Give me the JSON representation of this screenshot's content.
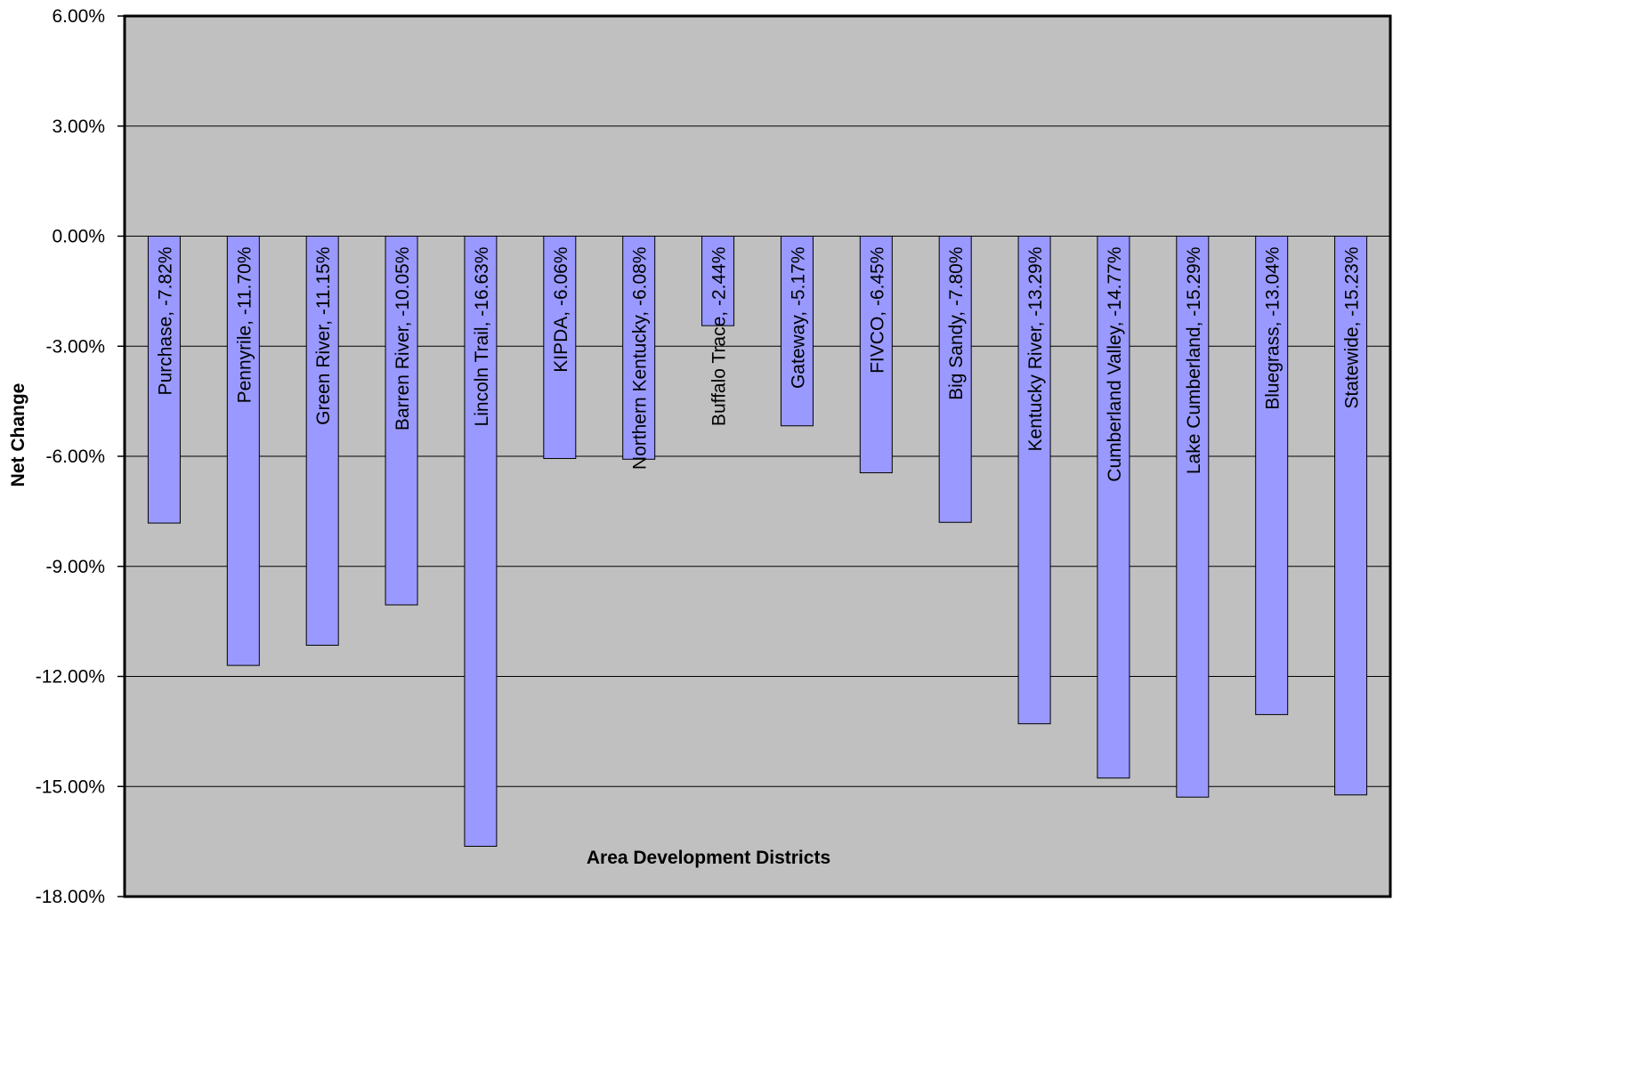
{
  "chart_data": {
    "type": "bar",
    "categories": [
      "Purchase",
      "Pennyrile",
      "Green River",
      "Barren River",
      "Lincoln Trail",
      "KIPDA",
      "Northern Kentucky",
      "Buffalo Trace",
      "Gateway",
      "FIVCO",
      "Big Sandy",
      "Kentucky River",
      "Cumberland Valley",
      "Lake Cumberland",
      "Bluegrass",
      "Statewide"
    ],
    "values": [
      -7.82,
      -11.7,
      -11.15,
      -10.05,
      -16.63,
      -6.06,
      -6.08,
      -2.44,
      -5.17,
      -6.45,
      -7.8,
      -13.29,
      -14.77,
      -15.29,
      -13.04,
      -15.23
    ],
    "data_labels": [
      "Purchase, -7.82%",
      "Pennyrile, -11.70%",
      "Green River, -11.15%",
      "Barren River, -10.05%",
      "Lincoln Trail, -16.63%",
      "KIPDA, -6.06%",
      "Northern Kentucky, -6.08%",
      "Buffalo Trace, -2.44%",
      "Gateway, -5.17%",
      "FIVCO, -6.45%",
      "Big Sandy, -7.80%",
      "Kentucky River, -13.29%",
      "Cumberland Valley, -14.77%",
      "Lake Cumberland, -15.29%",
      "Bluegrass, -13.04%",
      "Statewide, -15.23%"
    ],
    "xlabel": "Area Development Districts",
    "ylabel": "Net Change",
    "ylim": [
      -18,
      6
    ],
    "yticks": [
      6,
      3,
      0,
      -3,
      -6,
      -9,
      -12,
      -15,
      -18
    ],
    "ytick_labels": [
      "6.00%",
      "3.00%",
      "0.00%",
      "-3.00%",
      "-6.00%",
      "-9.00%",
      "-12.00%",
      "-15.00%",
      "-18.00%"
    ],
    "grid": true,
    "legend": "none",
    "colors": {
      "bar": "#9999ff",
      "plot_bg": "#c0c0c0",
      "grid": "#000000",
      "frame": "#000000"
    }
  }
}
